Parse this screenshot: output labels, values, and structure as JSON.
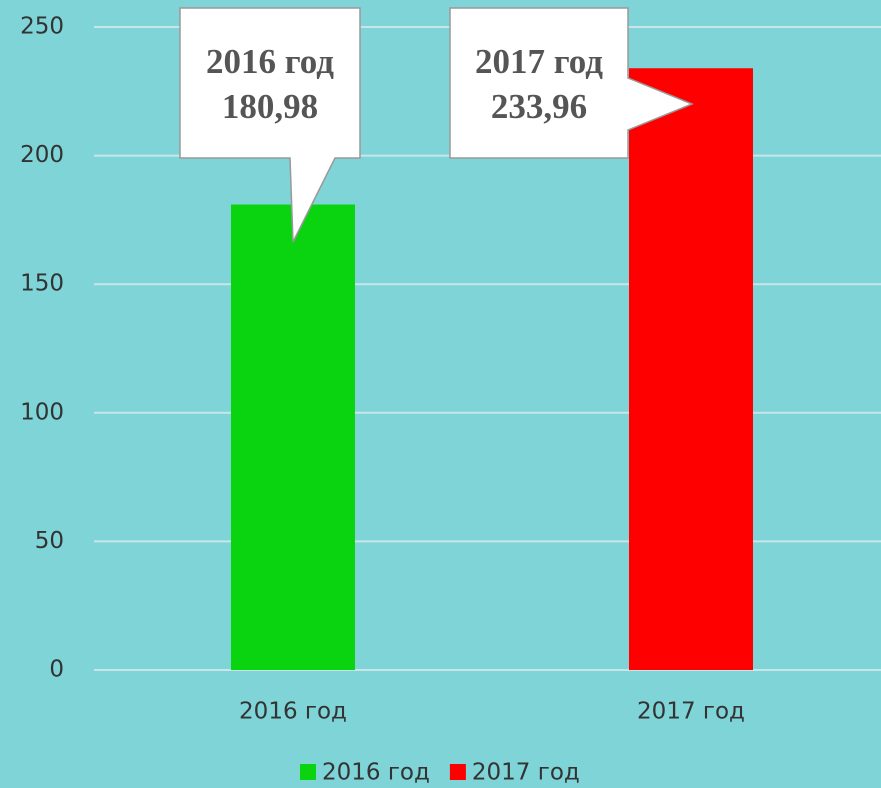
{
  "chart_data": {
    "type": "bar",
    "categories": [
      "2016 год",
      "2017 год"
    ],
    "series": [
      {
        "name": "2016 год",
        "color": "#0ad40f",
        "values": [
          180.98,
          null
        ],
        "value_labels": [
          "180,98",
          null
        ]
      },
      {
        "name": "2017 год",
        "color": "#ff0000",
        "values": [
          null,
          233.96
        ],
        "value_labels": [
          null,
          "233,96"
        ]
      }
    ],
    "ylim": [
      0,
      250
    ],
    "yticks": [
      0,
      50,
      100,
      150,
      200,
      250
    ],
    "grid": true,
    "legend": "bottom"
  }
}
